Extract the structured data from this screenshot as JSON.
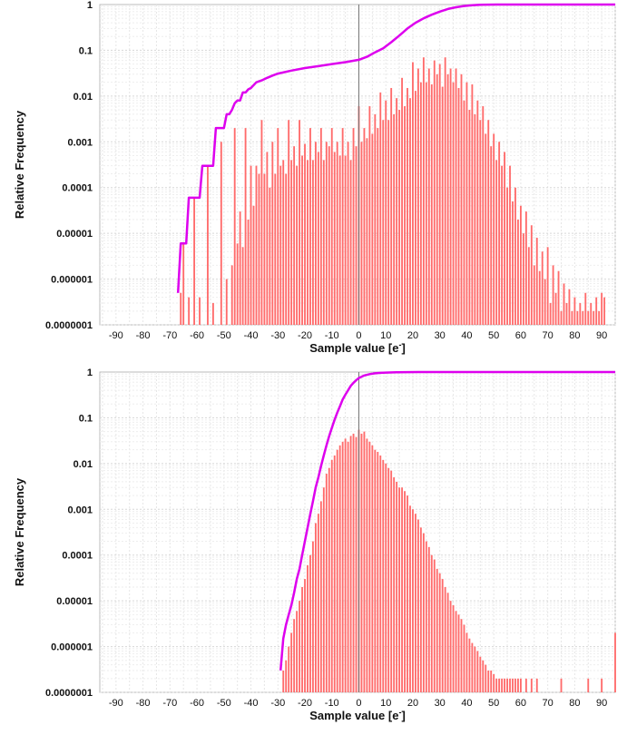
{
  "chart_data": [
    {
      "type": "bar",
      "ylabel": "Relative Frequency",
      "xlabel": "Sample value [e",
      "xlabel_sup": "-",
      "xlim": [
        -96,
        95
      ],
      "ylim": [
        1e-07,
        1
      ],
      "yscale": "log",
      "grid": true,
      "xticks": [
        -90,
        -80,
        -70,
        -60,
        -50,
        -40,
        -30,
        -20,
        -10,
        0,
        10,
        20,
        30,
        40,
        50,
        60,
        70,
        80,
        90
      ],
      "yticks": [
        {
          "value": 1,
          "label": "1"
        },
        {
          "value": 0.1,
          "label": "0.1"
        },
        {
          "value": 0.01,
          "label": "0.01"
        },
        {
          "value": 0.001,
          "label": "0.001"
        },
        {
          "value": 0.0001,
          "label": "0.0001"
        },
        {
          "value": 1e-05,
          "label": "0.00001"
        },
        {
          "value": 1e-06,
          "label": "0.000001"
        },
        {
          "value": 1e-07,
          "label": "0.0000001"
        }
      ],
      "bar_color": "#ff6b6b",
      "cdf_color": "#dd00ee",
      "zero_line_x": 0,
      "bars_x": [
        -66,
        -65,
        -63,
        -61,
        -59,
        -56,
        -54,
        -51,
        -49,
        -47,
        -46,
        -45,
        -44,
        -43,
        -42,
        -41,
        -40,
        -39,
        -38,
        -37,
        -36,
        -35,
        -34,
        -33,
        -32,
        -31,
        -30,
        -29,
        -28,
        -27,
        -26,
        -25,
        -24,
        -23,
        -22,
        -21,
        -20,
        -19,
        -18,
        -17,
        -16,
        -15,
        -14,
        -13,
        -12,
        -11,
        -10,
        -9,
        -8,
        -7,
        -6,
        -5,
        -4,
        -3,
        -2,
        -1,
        0,
        1,
        2,
        3,
        4,
        5,
        6,
        7,
        8,
        9,
        10,
        11,
        12,
        13,
        14,
        15,
        16,
        17,
        18,
        19,
        20,
        21,
        22,
        23,
        24,
        25,
        26,
        27,
        28,
        29,
        30,
        31,
        32,
        33,
        34,
        35,
        36,
        37,
        38,
        39,
        40,
        41,
        42,
        43,
        44,
        45,
        46,
        47,
        48,
        49,
        50,
        51,
        52,
        53,
        54,
        55,
        56,
        57,
        58,
        59,
        60,
        61,
        62,
        63,
        64,
        65,
        66,
        67,
        68,
        69,
        70,
        71,
        72,
        73,
        74,
        75,
        76,
        77,
        78,
        79,
        80,
        81,
        82,
        83,
        84,
        85,
        86,
        87,
        88,
        89,
        90,
        91,
        92,
        93,
        94,
        95
      ],
      "bars_y": [
        5e-07,
        6e-06,
        4e-07,
        6e-05,
        4e-07,
        0.0003,
        3e-07,
        0.001,
        1e-06,
        2e-06,
        0.002,
        6e-06,
        3e-05,
        5e-06,
        0.002,
        2e-05,
        0.0003,
        4e-05,
        0.0003,
        0.0002,
        0.003,
        0.0002,
        0.0006,
        0.0001,
        0.001,
        0.0002,
        0.002,
        0.0003,
        0.0004,
        0.0002,
        0.003,
        0.0004,
        0.0008,
        0.0003,
        0.003,
        0.0005,
        0.0009,
        0.0004,
        0.002,
        0.0004,
        0.001,
        0.0006,
        0.002,
        0.0004,
        0.001,
        0.0008,
        0.002,
        0.0006,
        0.001,
        0.0005,
        0.002,
        0.0005,
        0.001,
        0.0004,
        0.002,
        0.0008,
        0.006,
        0.001,
        0.002,
        0.0012,
        0.006,
        0.0015,
        0.004,
        0.002,
        0.012,
        0.003,
        0.008,
        0.003,
        0.015,
        0.004,
        0.009,
        0.005,
        0.025,
        0.006,
        0.015,
        0.009,
        0.055,
        0.013,
        0.04,
        0.02,
        0.07,
        0.02,
        0.04,
        0.018,
        0.06,
        0.03,
        0.05,
        0.016,
        0.07,
        0.03,
        0.04,
        0.02,
        0.04,
        0.015,
        0.03,
        0.008,
        0.02,
        0.005,
        0.018,
        0.004,
        0.008,
        0.003,
        0.006,
        0.0015,
        0.003,
        0.0008,
        0.0015,
        0.0004,
        0.001,
        0.0003,
        0.0006,
        0.0001,
        0.0003,
        5e-05,
        0.0001,
        2e-05,
        4e-05,
        1e-05,
        3e-05,
        5e-06,
        1.5e-05,
        2e-06,
        8e-06,
        1.5e-06,
        4e-06,
        1e-06,
        5e-06,
        3e-07,
        2e-06,
        5e-07,
        1.5e-06,
        2e-07,
        8e-07,
        3e-07,
        6e-07,
        2e-07,
        4e-07,
        2e-07,
        3e-07,
        2e-07,
        5e-07,
        2e-07,
        3e-07,
        2e-07,
        4e-07,
        2e-07,
        5e-07,
        4e-07
      ],
      "cdf": {
        "x": [
          -67,
          -66,
          -65,
          -64,
          -63,
          -62,
          -61,
          -60,
          -59,
          -58,
          -57,
          -56,
          -55,
          -54,
          -53,
          -52,
          -51,
          -50,
          -49,
          -48,
          -47,
          -46,
          -45,
          -44,
          -43,
          -42,
          -41,
          -40,
          -38,
          -36,
          -34,
          -32,
          -30,
          -25,
          -20,
          -15,
          -10,
          -5,
          0,
          3,
          6,
          9,
          12,
          15,
          18,
          21,
          24,
          27,
          30,
          33,
          36,
          39,
          42,
          45,
          48,
          51,
          54,
          57,
          60,
          65,
          70,
          75,
          80,
          85,
          90,
          95
        ],
        "y": [
          5e-07,
          6e-06,
          6e-06,
          6e-06,
          6e-05,
          6e-05,
          6e-05,
          6e-05,
          6e-05,
          0.0003,
          0.0003,
          0.0003,
          0.0003,
          0.0003,
          0.002,
          0.002,
          0.002,
          0.002,
          0.004,
          0.004,
          0.005,
          0.007,
          0.008,
          0.008,
          0.012,
          0.012,
          0.014,
          0.015,
          0.02,
          0.022,
          0.025,
          0.028,
          0.031,
          0.036,
          0.041,
          0.045,
          0.05,
          0.055,
          0.062,
          0.072,
          0.09,
          0.11,
          0.15,
          0.21,
          0.3,
          0.4,
          0.5,
          0.6,
          0.7,
          0.8,
          0.87,
          0.93,
          0.97,
          0.99,
          0.995,
          0.999,
          1,
          1,
          1,
          1,
          1,
          1,
          1,
          1,
          1,
          1
        ]
      }
    },
    {
      "type": "bar",
      "ylabel": "Relative Frequency",
      "xlabel": "Sample value [e",
      "xlabel_sup": "-",
      "xlim": [
        -96,
        95
      ],
      "ylim": [
        1e-07,
        1
      ],
      "yscale": "log",
      "grid": true,
      "xticks": [
        -90,
        -80,
        -70,
        -60,
        -50,
        -40,
        -30,
        -20,
        -10,
        0,
        10,
        20,
        30,
        40,
        50,
        60,
        70,
        80,
        90
      ],
      "yticks": [
        {
          "value": 1,
          "label": "1"
        },
        {
          "value": 0.1,
          "label": "0.1"
        },
        {
          "value": 0.01,
          "label": "0.01"
        },
        {
          "value": 0.001,
          "label": "0.001"
        },
        {
          "value": 0.0001,
          "label": "0.0001"
        },
        {
          "value": 1e-05,
          "label": "0.00001"
        },
        {
          "value": 1e-06,
          "label": "0.000001"
        },
        {
          "value": 1e-07,
          "label": "0.0000001"
        }
      ],
      "bar_color": "#ff6b6b",
      "cdf_color": "#dd00ee",
      "zero_line_x": 0,
      "bars_x": [
        -28,
        -27,
        -26,
        -25,
        -24,
        -23,
        -22,
        -21,
        -20,
        -19,
        -18,
        -17,
        -16,
        -15,
        -14,
        -13,
        -12,
        -11,
        -10,
        -9,
        -8,
        -7,
        -6,
        -5,
        -4,
        -3,
        -2,
        -1,
        0,
        1,
        2,
        3,
        4,
        5,
        6,
        7,
        8,
        9,
        10,
        11,
        12,
        13,
        14,
        15,
        16,
        17,
        18,
        19,
        20,
        21,
        22,
        23,
        24,
        25,
        26,
        27,
        28,
        29,
        30,
        31,
        32,
        33,
        34,
        35,
        36,
        37,
        38,
        39,
        40,
        41,
        42,
        43,
        44,
        45,
        46,
        47,
        48,
        49,
        50,
        51,
        52,
        53,
        54,
        55,
        56,
        57,
        58,
        59,
        60,
        62,
        64,
        66,
        75,
        85,
        90,
        95
      ],
      "bars_y": [
        3e-07,
        5e-07,
        1e-06,
        2e-06,
        4e-06,
        6e-06,
        1e-05,
        2e-05,
        3e-05,
        6e-05,
        0.0001,
        0.0002,
        0.0005,
        0.0008,
        0.0015,
        0.003,
        0.006,
        0.008,
        0.012,
        0.015,
        0.02,
        0.025,
        0.03,
        0.035,
        0.03,
        0.04,
        0.045,
        0.038,
        0.055,
        0.045,
        0.05,
        0.035,
        0.03,
        0.025,
        0.02,
        0.018,
        0.015,
        0.012,
        0.01,
        0.008,
        0.007,
        0.005,
        0.004,
        0.003,
        0.003,
        0.0025,
        0.002,
        0.0012,
        0.001,
        0.0008,
        0.0006,
        0.0004,
        0.0003,
        0.0002,
        0.00015,
        0.0001,
        8e-05,
        5e-05,
        4e-05,
        3e-05,
        2e-05,
        1.5e-05,
        1e-05,
        8e-06,
        6e-06,
        5e-06,
        4e-06,
        3e-06,
        2e-06,
        1.5e-06,
        1.2e-06,
        1e-06,
        8e-07,
        6e-07,
        5e-07,
        4e-07,
        3e-07,
        3e-07,
        2.5e-07,
        2e-07,
        2e-07,
        2e-07,
        2e-07,
        2e-07,
        2e-07,
        2e-07,
        2e-07,
        2e-07,
        2e-07,
        2e-07,
        2e-07,
        2e-07,
        2e-07,
        2e-07,
        2e-07,
        2e-06
      ],
      "cdf": {
        "x": [
          -29,
          -28,
          -27,
          -26,
          -25,
          -24,
          -23,
          -22,
          -21,
          -20,
          -19,
          -18,
          -17,
          -16,
          -15,
          -14,
          -13,
          -12,
          -11,
          -10,
          -9,
          -8,
          -7,
          -6,
          -5,
          -4,
          -3,
          -2,
          -1,
          0,
          2,
          4,
          6,
          8,
          10,
          14,
          18,
          22,
          26,
          30,
          40,
          50,
          60,
          70,
          80,
          90,
          95
        ],
        "y": [
          3e-07,
          1.5e-06,
          3e-06,
          5e-06,
          8e-06,
          1.5e-05,
          3e-05,
          5e-05,
          0.0001,
          0.0002,
          0.0004,
          0.0008,
          0.0015,
          0.003,
          0.005,
          0.009,
          0.015,
          0.025,
          0.04,
          0.06,
          0.09,
          0.13,
          0.18,
          0.25,
          0.32,
          0.4,
          0.5,
          0.58,
          0.66,
          0.74,
          0.84,
          0.9,
          0.94,
          0.96,
          0.975,
          0.988,
          0.995,
          0.998,
          0.999,
          1,
          1,
          1,
          1,
          1,
          1,
          1,
          1
        ]
      }
    }
  ]
}
